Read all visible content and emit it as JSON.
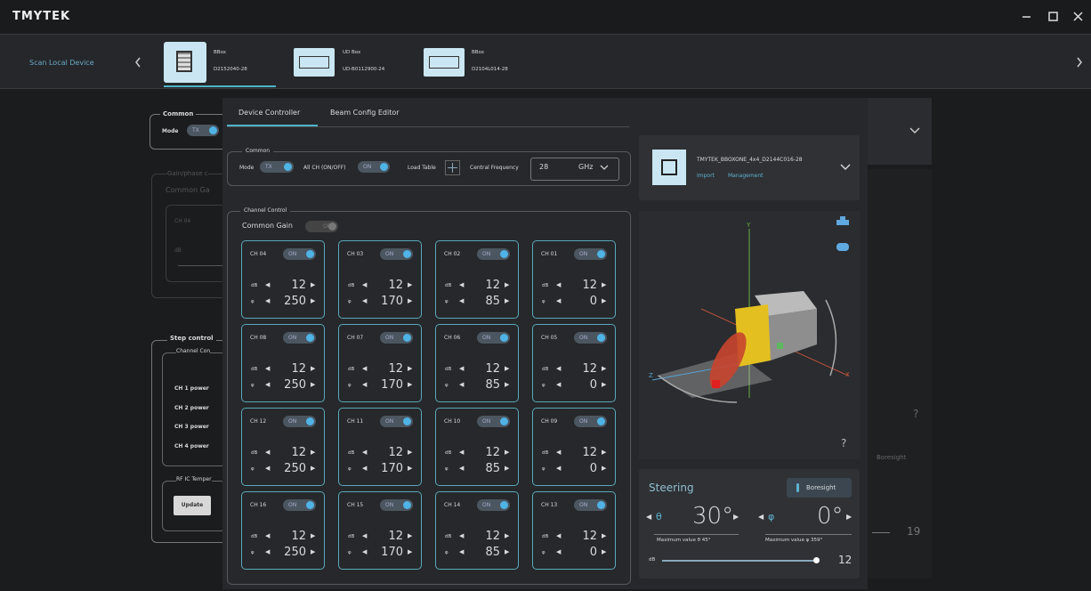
{
  "header": {
    "brand": "TMYTEK"
  },
  "device_bar": {
    "scan": "Scan Local Device",
    "devices": [
      {
        "name": "BBox",
        "serial": "D2152040-28"
      },
      {
        "name": "UD Box",
        "serial": "UD-B0112900-24"
      },
      {
        "name": "BBox",
        "serial": "D2104L014-28"
      }
    ]
  },
  "background": {
    "common": "Common",
    "mode": "Mode",
    "mode_value": "TX",
    "gain_phase": "Gain/phase c",
    "common_gain": "Common Ga",
    "channel": "CH 04",
    "gain_unit": "dB",
    "step_control": "Step control",
    "channel_control": "Channel Con",
    "powers": [
      "CH 1 power",
      "CH 2 power",
      "CH 3 power",
      "CH 4 power"
    ],
    "rf_ic": "RF IC Temper",
    "update": "Update",
    "boresight": "Boresight",
    "help": "?",
    "gain": 19
  },
  "tabs": [
    "Device Controller",
    "Beam Config Editor"
  ],
  "common": {
    "title": "Common",
    "mode": "Mode",
    "mode_value": "TX",
    "all_ch": "All CH (ON/OFF)",
    "all_ch_value": "ON",
    "load_table": "Load Table",
    "frequency_label": "Central Frequency",
    "frequency": 28,
    "unit": "GHz"
  },
  "channel_control": {
    "title": "Channel Control",
    "common_gain": "Common Gain",
    "common_gain_value": "OFF",
    "gain_unit": "dB",
    "phase_unit": "φ",
    "channels": [
      {
        "name": "CH 04",
        "state": "ON",
        "gain": 12,
        "phase": 250
      },
      {
        "name": "CH 03",
        "state": "ON",
        "gain": 12,
        "phase": 170
      },
      {
        "name": "CH 02",
        "state": "ON",
        "gain": 12,
        "phase": 85
      },
      {
        "name": "CH 01",
        "state": "ON",
        "gain": 12,
        "phase": 0
      },
      {
        "name": "CH 08",
        "state": "ON",
        "gain": 12,
        "phase": 250
      },
      {
        "name": "CH 07",
        "state": "ON",
        "gain": 12,
        "phase": 170
      },
      {
        "name": "CH 06",
        "state": "ON",
        "gain": 12,
        "phase": 85
      },
      {
        "name": "CH 05",
        "state": "ON",
        "gain": 12,
        "phase": 0
      },
      {
        "name": "CH 12",
        "state": "ON",
        "gain": 12,
        "phase": 250
      },
      {
        "name": "CH 11",
        "state": "ON",
        "gain": 12,
        "phase": 170
      },
      {
        "name": "CH 10",
        "state": "ON",
        "gain": 12,
        "phase": 85
      },
      {
        "name": "CH 09",
        "state": "ON",
        "gain": 12,
        "phase": 0
      },
      {
        "name": "CH 16",
        "state": "ON",
        "gain": 12,
        "phase": 250
      },
      {
        "name": "CH 15",
        "state": "ON",
        "gain": 12,
        "phase": 170
      },
      {
        "name": "CH 14",
        "state": "ON",
        "gain": 12,
        "phase": 85
      },
      {
        "name": "CH 13",
        "state": "ON",
        "gain": 12,
        "phase": 0
      }
    ]
  },
  "device_card": {
    "name": "TMYTEK_BBOXONE_4x4_D2144C016-28",
    "import": "Import",
    "management": "Management"
  },
  "view": {
    "y": "Y",
    "x": "X",
    "z": "Z",
    "help": "?"
  },
  "steering": {
    "title": "Steering",
    "boresight": "Boresight",
    "theta_symbol": "θ",
    "theta": "30°",
    "phi_symbol": "φ",
    "phi": "0°",
    "theta_max": "Maximum value θ 45°",
    "phi_max": "Maximum value φ 359°",
    "gain_unit": "dB",
    "gain": 12
  }
}
